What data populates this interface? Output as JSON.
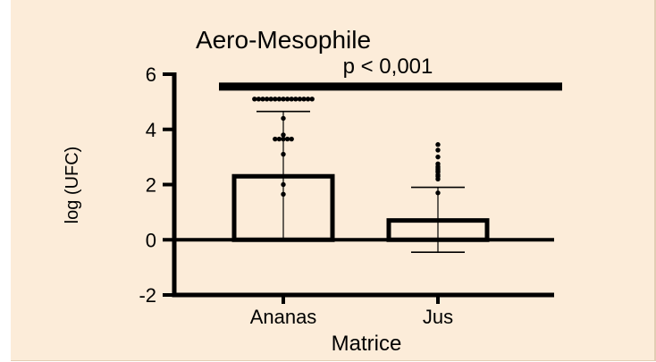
{
  "colors": {
    "panel_background": "#fcecd9",
    "ink": "#000000",
    "bar_fill": "#fcecd9"
  },
  "chart_data": {
    "type": "bar",
    "title": "Aero-Mesophile",
    "xlabel": "Matrice",
    "ylabel": "log (UFC)",
    "ylim": [
      -2,
      6
    ],
    "yticks": [
      -2,
      0,
      2,
      4,
      6
    ],
    "ytick_labels": [
      "-2",
      "0",
      "2",
      "4",
      "6"
    ],
    "grid": false,
    "categories": [
      "Ananas",
      "Jus"
    ],
    "values": [
      2.3,
      0.7
    ],
    "error_upper": [
      4.65,
      1.9
    ],
    "error_lower": [
      0,
      -0.45
    ],
    "points": [
      [
        5.1,
        5.1,
        5.1,
        5.1,
        5.1,
        5.1,
        5.1,
        5.1,
        5.1,
        5.1,
        5.1,
        5.1,
        5.1,
        5.1,
        5.1,
        4.4,
        3.8,
        3.65,
        3.65,
        3.65,
        3.65,
        3.65,
        3.1,
        2.0,
        1.65
      ],
      [
        3.45,
        3.25,
        3.0,
        2.75,
        2.65,
        2.6,
        2.55,
        2.5,
        2.45,
        2.35,
        2.3,
        2.2,
        1.7
      ]
    ],
    "annotation": {
      "text": "p < 0,001",
      "y": 5.55
    }
  }
}
